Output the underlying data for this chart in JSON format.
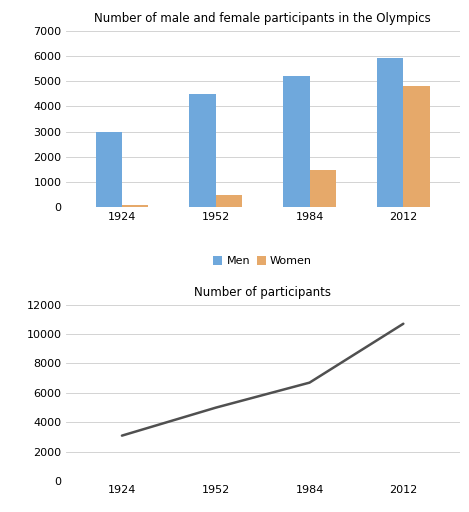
{
  "years": [
    1924,
    1952,
    1984,
    2012
  ],
  "men": [
    3000,
    4500,
    5200,
    5900
  ],
  "women": [
    100,
    500,
    1500,
    4800
  ],
  "total": [
    3100,
    5000,
    6700,
    10700
  ],
  "bar_color_men": "#6fa8dc",
  "bar_color_women": "#e6a96a",
  "line_color": "#505050",
  "bar_title": "Number of male and female participants in the Olympics",
  "line_title": "Number of participants",
  "legend_men": "Men",
  "legend_women": "Women",
  "bar_ylim": [
    0,
    7000
  ],
  "bar_yticks": [
    0,
    1000,
    2000,
    3000,
    4000,
    5000,
    6000,
    7000
  ],
  "line_ylim": [
    0,
    12000
  ],
  "line_yticks": [
    0,
    2000,
    4000,
    6000,
    8000,
    10000,
    12000
  ],
  "background_color": "#ffffff",
  "grid_color": "#cccccc",
  "bar_width": 0.28
}
